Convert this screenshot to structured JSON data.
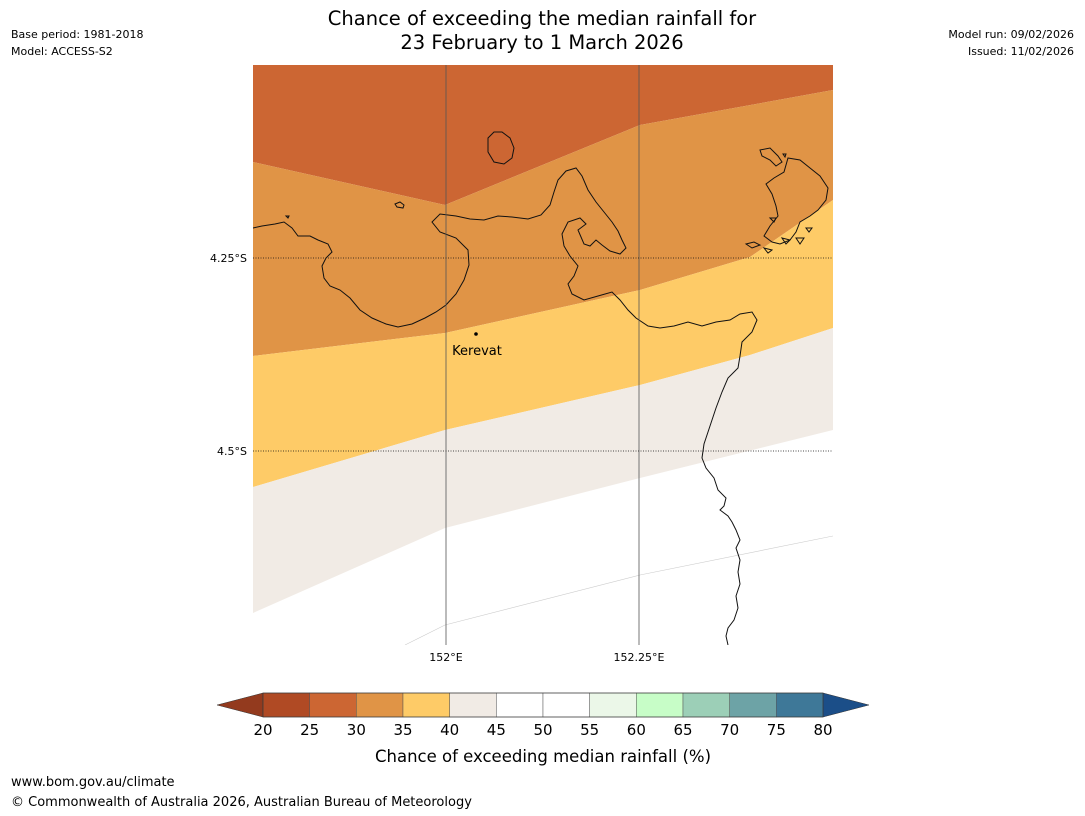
{
  "header": {
    "title_line1": "Chance of exceeding the median rainfall for",
    "title_line2": "23 February to 1 March 2026",
    "base_period": "Base period: 1981-2018",
    "model": "Model: ACCESS-S2",
    "model_run": "Model run: 09/02/2026",
    "issued": "Issued: 11/02/2026"
  },
  "map": {
    "latitude_labels": [
      "4.25°S",
      "4.5°S"
    ],
    "longitude_labels": [
      "152°E",
      "152.25°E"
    ],
    "place_label": "Kerevat",
    "colors": {
      "band_25_30": "#cc6633",
      "band_30_35": "#e09446",
      "band_35_40": "#fecb67",
      "band_40_45": "#f1ebe5",
      "coastline": "#111111",
      "gridline": "#555555"
    }
  },
  "legend": {
    "title": "Chance of exceeding median rainfall (%)",
    "ticks": [
      "20",
      "25",
      "30",
      "35",
      "40",
      "45",
      "50",
      "55",
      "60",
      "65",
      "70",
      "75",
      "80"
    ],
    "low_extend_color": "#933a1e",
    "high_extend_color": "#1b4e88",
    "bins": [
      {
        "range": "20-25",
        "color": "#b04a24"
      },
      {
        "range": "25-30",
        "color": "#cc6633"
      },
      {
        "range": "30-35",
        "color": "#e09446"
      },
      {
        "range": "35-40",
        "color": "#fecb67"
      },
      {
        "range": "40-45",
        "color": "#f1ebe5"
      },
      {
        "range": "45-50",
        "color": "#ffffff"
      },
      {
        "range": "50-55",
        "color": "#ffffff"
      },
      {
        "range": "55-60",
        "color": "#ebf7e8"
      },
      {
        "range": "60-65",
        "color": "#c7fdc7"
      },
      {
        "range": "65-70",
        "color": "#9ccfb7"
      },
      {
        "range": "70-75",
        "color": "#6da3a6"
      },
      {
        "range": "75-80",
        "color": "#3e7898"
      }
    ]
  },
  "footer": {
    "url": "www.bom.gov.au/climate",
    "copyright": "© Commonwealth of Australia 2026, Australian Bureau of Meteorology"
  }
}
